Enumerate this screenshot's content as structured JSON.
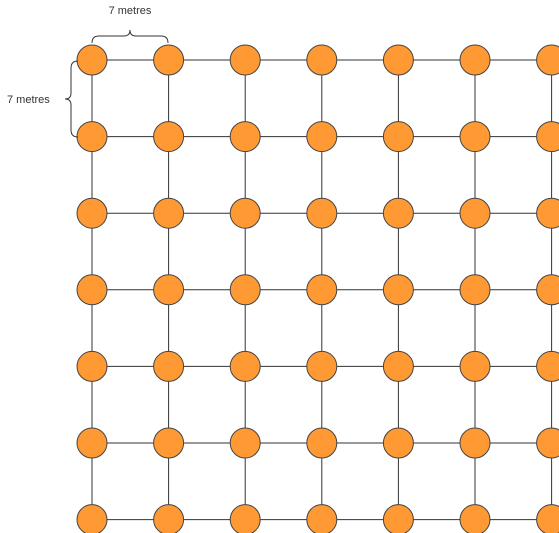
{
  "diagram": {
    "top_label": "7 metres",
    "left_label": "7 metres"
  },
  "grid": {
    "rows": 7,
    "cols": 7
  },
  "colors": {
    "node_fill": "#FF9933",
    "node_stroke": "#444444",
    "line": "#333333",
    "background": "#FFFFFF"
  }
}
